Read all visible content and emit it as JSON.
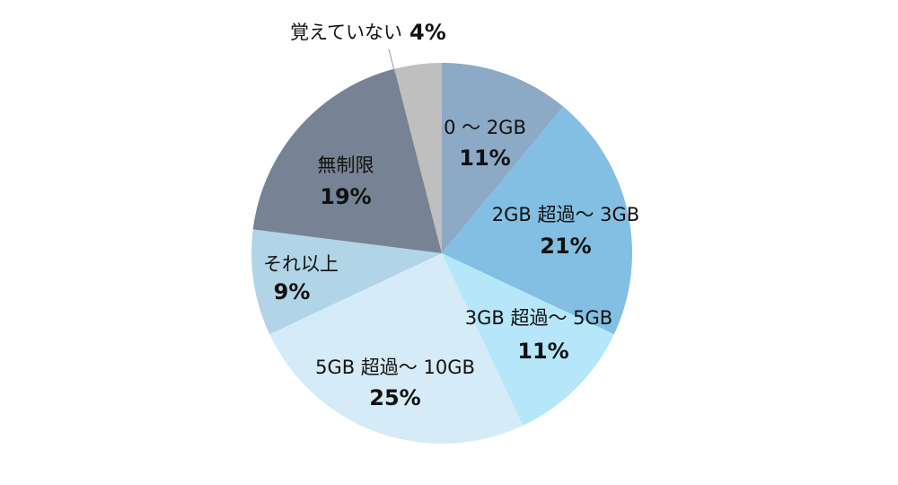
{
  "chart_data": {
    "type": "pie",
    "categories": [
      "0 〜 2GB",
      "2GB 超過〜 3GB",
      "3GB 超過〜 5GB",
      "5GB 超過〜 10GB",
      "それ以上",
      "無制限",
      "覚えていない"
    ],
    "values": [
      11,
      21,
      11,
      25,
      9,
      19,
      4
    ],
    "value_labels": [
      "11%",
      "21%",
      "11%",
      "25%",
      "9%",
      "19%",
      "4%"
    ],
    "colors": [
      "#8ca9c6",
      "#82bfe2",
      "#b5e6f9",
      "#d5ebf7",
      "#b1d5e7",
      "#778394",
      "#bfbfbf"
    ]
  }
}
